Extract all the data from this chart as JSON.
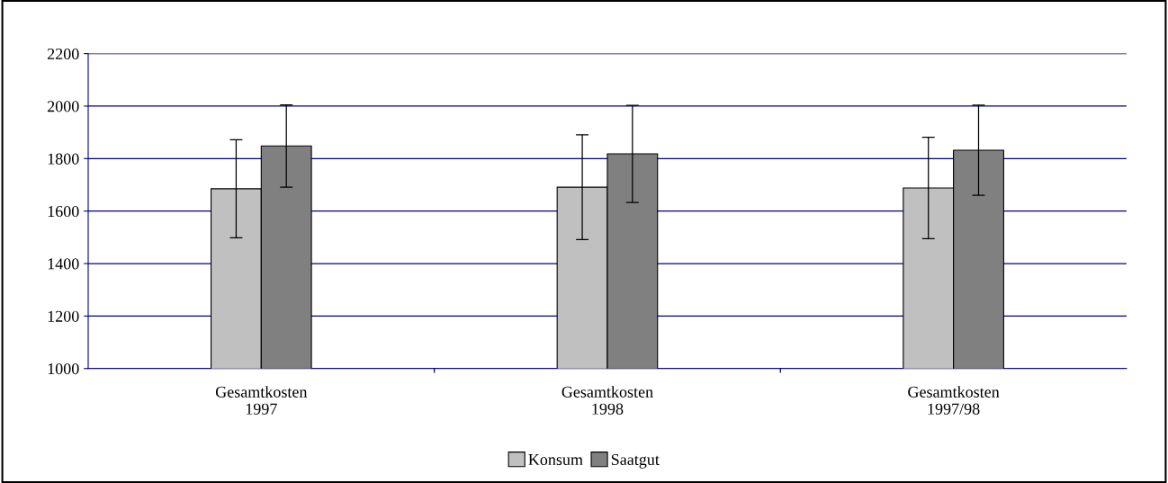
{
  "chart_data": {
    "type": "bar",
    "categories": [
      "Gesamtkosten\n1997",
      "Gesamtkosten\n1998",
      "Gesamtkosten\n1997/98"
    ],
    "series": [
      {
        "name": "Konsum",
        "color": "#c0c0c0",
        "values": [
          1685,
          1691,
          1688
        ],
        "errors": [
          187,
          200,
          193
        ]
      },
      {
        "name": "Saatgut",
        "color": "#808080",
        "values": [
          1848,
          1818,
          1832
        ],
        "errors": [
          157,
          185,
          172
        ]
      }
    ],
    "ylim": [
      1000,
      2200
    ],
    "yticks": [
      1000,
      1200,
      1400,
      1600,
      1800,
      2000,
      2200
    ],
    "grid": "y",
    "legend": "bottom"
  }
}
